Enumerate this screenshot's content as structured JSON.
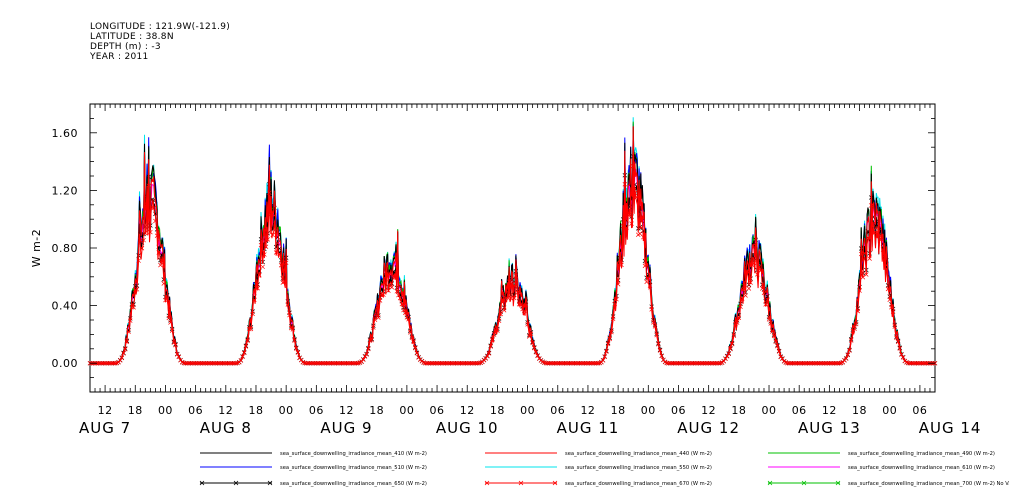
{
  "header": {
    "longitude": "LONGITUDE : 121.9W(-121.9)",
    "latitude": "LATITUDE : 38.8N",
    "depth": "DEPTH (m) : -3",
    "year": "YEAR : 2011"
  },
  "chart_data": {
    "type": "line",
    "ylabel": "W m-2",
    "xlabel": "",
    "ylim": [
      -0.2,
      1.8
    ],
    "yticks": [
      "0.00",
      "0.40",
      "0.80",
      "1.20",
      "1.60"
    ],
    "ytick_values": [
      0,
      0.4,
      0.8,
      1.2,
      1.6
    ],
    "xlim_hours": [
      9,
      177
    ],
    "xticks": [
      "12",
      "18",
      "00",
      "06",
      "12",
      "18",
      "00",
      "06",
      "12",
      "18",
      "00",
      "06",
      "12",
      "18",
      "00",
      "06",
      "12",
      "18",
      "00",
      "06",
      "12",
      "18",
      "00",
      "06",
      "12",
      "18",
      "00",
      "06"
    ],
    "day_labels": [
      "AUG  7",
      "AUG  8",
      "AUG  9",
      "AUG 10",
      "AUG 11",
      "AUG 12",
      "AUG 13",
      "AUG 14"
    ],
    "x_units": "hours from 2011-08-07 00:00",
    "daily_peaks": [
      {
        "day": "AUG 7",
        "noon_hour": 21,
        "peak": 1.54
      },
      {
        "day": "AUG 8",
        "noon_hour": 45,
        "peak": 1.48
      },
      {
        "day": "AUG 9",
        "noon_hour": 69,
        "peak": 0.96
      },
      {
        "day": "AUG 10",
        "noon_hour": 93,
        "peak": 0.76
      },
      {
        "day": "AUG 11",
        "noon_hour": 117,
        "peak": 1.71
      },
      {
        "day": "AUG 12",
        "noon_hour": 141,
        "peak": 1.02
      },
      {
        "day": "AUG 13",
        "noon_hour": 165,
        "peak": 1.37
      }
    ],
    "series": [
      {
        "name": "sea_surface_downwelling_irradiance_mean_410 (W m-2)",
        "color": "#000000",
        "scale": 0.96,
        "marker": "none"
      },
      {
        "name": "sea_surface_downwelling_irradiance_mean_440 (W m-2)",
        "color": "#ff0000",
        "scale": 0.93,
        "marker": "none"
      },
      {
        "name": "sea_surface_downwelling_irradiance_mean_490 (W m-2)",
        "color": "#00c000",
        "scale": 0.97,
        "marker": "none"
      },
      {
        "name": "sea_surface_downwelling_irradiance_mean_510 (W m-2)",
        "color": "#0000ff",
        "scale": 0.99,
        "marker": "none"
      },
      {
        "name": "sea_surface_downwelling_irradiance_mean_550 (W m-2)",
        "color": "#00e5ee",
        "scale": 1.0,
        "marker": "none"
      },
      {
        "name": "sea_surface_downwelling_irradiance_mean_610 (W m-2)",
        "color": "#ff00ff",
        "scale": 0.9,
        "marker": "none"
      },
      {
        "name": "sea_surface_downwelling_irradiance_mean_650 (W m-2)",
        "color": "#000000",
        "scale": 0.84,
        "marker": "x"
      },
      {
        "name": "sea_surface_downwelling_irradiance_mean_670 (W m-2)",
        "color": "#ff0000",
        "scale": 0.8,
        "marker": "x"
      },
      {
        "name": "sea_surface_downwelling_irradiance_mean_700 (W m-2) No Valid Data",
        "color": "#00c000",
        "scale": 0,
        "marker": "x"
      }
    ],
    "grid": false,
    "legend_placement": "bottom"
  }
}
